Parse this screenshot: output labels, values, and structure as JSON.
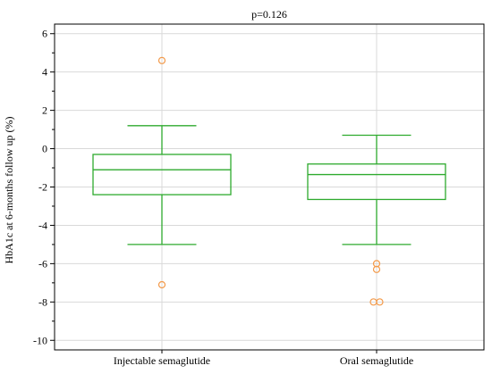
{
  "chart_data": {
    "type": "boxplot",
    "title": "p=0.126",
    "xlabel": "",
    "ylabel": "HbA1c at 6-months follow up (%)",
    "ylim": [
      -10.5,
      6.5
    ],
    "yticks": [
      6,
      4,
      2,
      0,
      -2,
      -4,
      -6,
      -8,
      -10
    ],
    "ytick_labels": [
      "6",
      "4",
      "2",
      "0",
      "-2",
      "-4",
      "-6",
      "-8",
      "-10"
    ],
    "grid": true,
    "box_color": "#2eaa2e",
    "outlier_color": "#f39a4a",
    "categories": [
      "Injectable semaglutide",
      "Oral semaglutide"
    ],
    "boxes": [
      {
        "name": "Injectable semaglutide",
        "whisker_low": -5.0,
        "q1": -2.4,
        "median": -1.1,
        "q3": -0.3,
        "whisker_high": 1.2,
        "outliers": [
          4.6,
          -7.1
        ]
      },
      {
        "name": "Oral semaglutide",
        "whisker_low": -5.0,
        "q1": -2.65,
        "median": -1.35,
        "q3": -0.8,
        "whisker_high": 0.7,
        "outliers": [
          -6.0,
          -6.3,
          -8.0,
          -8.0
        ]
      }
    ]
  }
}
